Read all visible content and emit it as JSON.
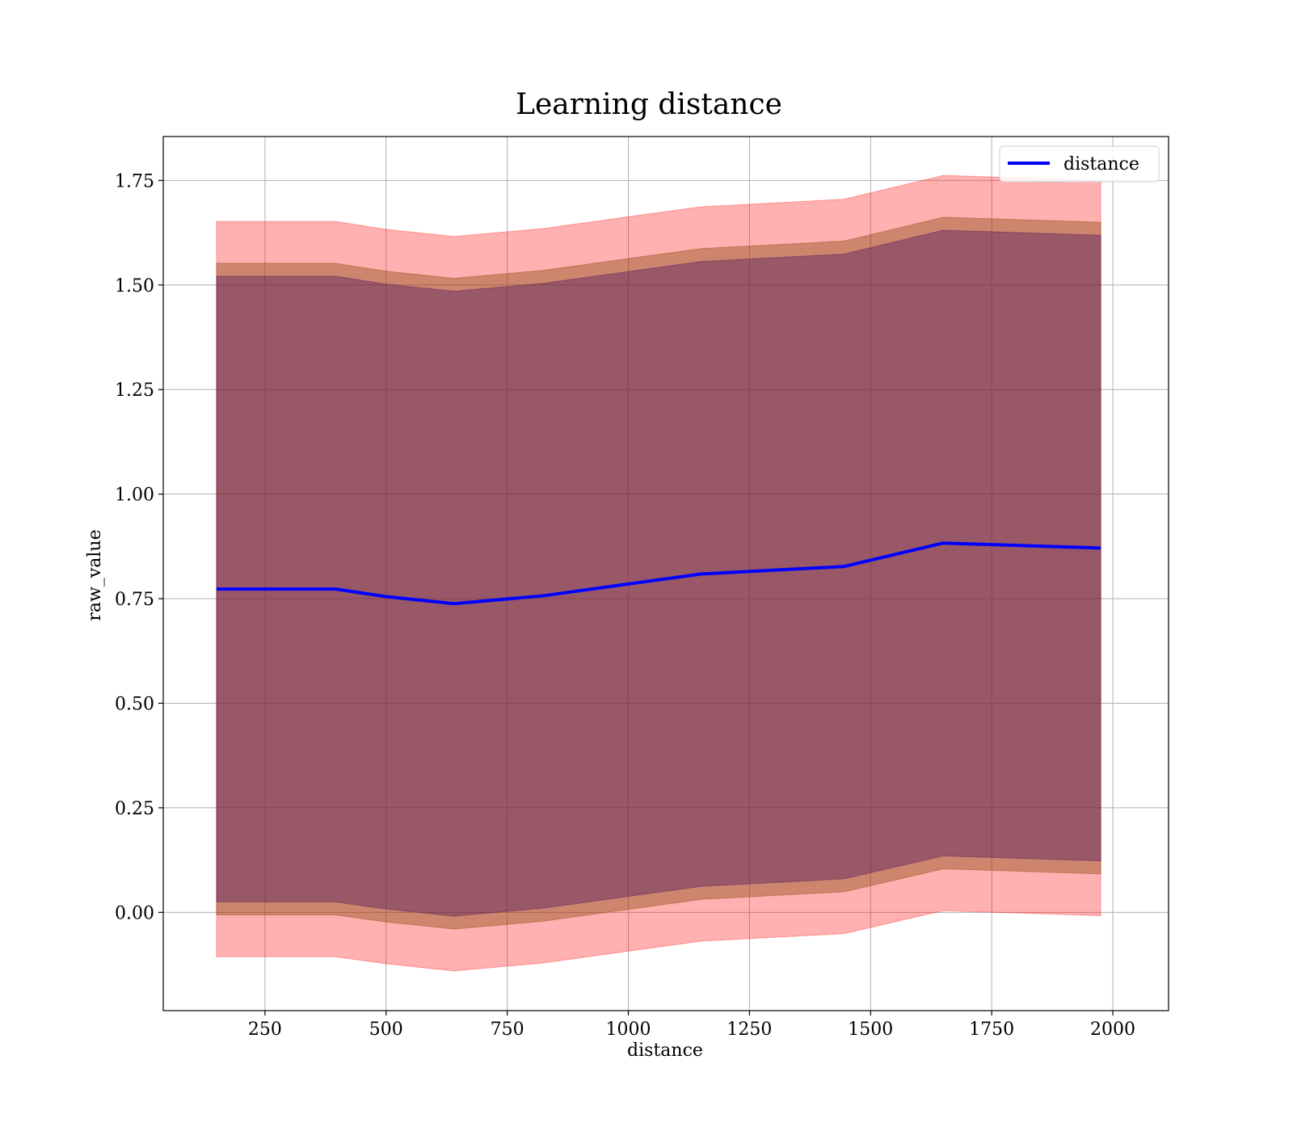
{
  "chart_data": {
    "type": "area",
    "title": "Learning distance",
    "xlabel": "distance",
    "ylabel": "raw_value",
    "xlim": [
      40,
      2115
    ],
    "ylim": [
      -0.235,
      1.855
    ],
    "xticks": [
      250,
      500,
      750,
      1000,
      1250,
      1500,
      1750,
      2000
    ],
    "xtick_labels": [
      "250",
      "500",
      "750",
      "1000",
      "1250",
      "1500",
      "1750",
      "2000"
    ],
    "yticks": [
      0.0,
      0.25,
      0.5,
      0.75,
      1.0,
      1.25,
      1.5,
      1.75
    ],
    "ytick_labels": [
      "0.00",
      "0.25",
      "0.50",
      "0.75",
      "1.00",
      "1.25",
      "1.50",
      "1.75"
    ],
    "grid": true,
    "legend_position": "top-right",
    "x": [
      150,
      395,
      500,
      640,
      825,
      1005,
      1150,
      1445,
      1650,
      1975
    ],
    "series": [
      {
        "name": "distance",
        "values": [
          0.773,
          0.773,
          0.755,
          0.738,
          0.757,
          0.786,
          0.809,
          0.827,
          0.883,
          0.871
        ],
        "color": "#0000ff"
      }
    ],
    "bands": [
      {
        "lower": [
          -0.106,
          -0.106,
          -0.123,
          -0.14,
          -0.121,
          -0.092,
          -0.069,
          -0.051,
          0.004,
          -0.008
        ],
        "upper": [
          1.652,
          1.652,
          1.633,
          1.616,
          1.635,
          1.664,
          1.687,
          1.705,
          1.762,
          1.75
        ],
        "color": "#ff0000",
        "opacity": 0.31
      },
      {
        "lower": [
          -0.006,
          -0.006,
          -0.023,
          -0.04,
          -0.021,
          0.008,
          0.031,
          0.049,
          0.104,
          0.092
        ],
        "upper": [
          1.552,
          1.552,
          1.533,
          1.516,
          1.535,
          1.564,
          1.587,
          1.605,
          1.662,
          1.65
        ],
        "color": "#8b4a10",
        "opacity": 0.42
      },
      {
        "lower": [
          0.025,
          0.025,
          0.008,
          -0.009,
          0.01,
          0.039,
          0.062,
          0.08,
          0.135,
          0.123
        ],
        "upper": [
          1.521,
          1.521,
          1.502,
          1.485,
          1.504,
          1.533,
          1.556,
          1.574,
          1.631,
          1.619
        ],
        "color": "#4a1560",
        "opacity": 0.4
      }
    ]
  }
}
